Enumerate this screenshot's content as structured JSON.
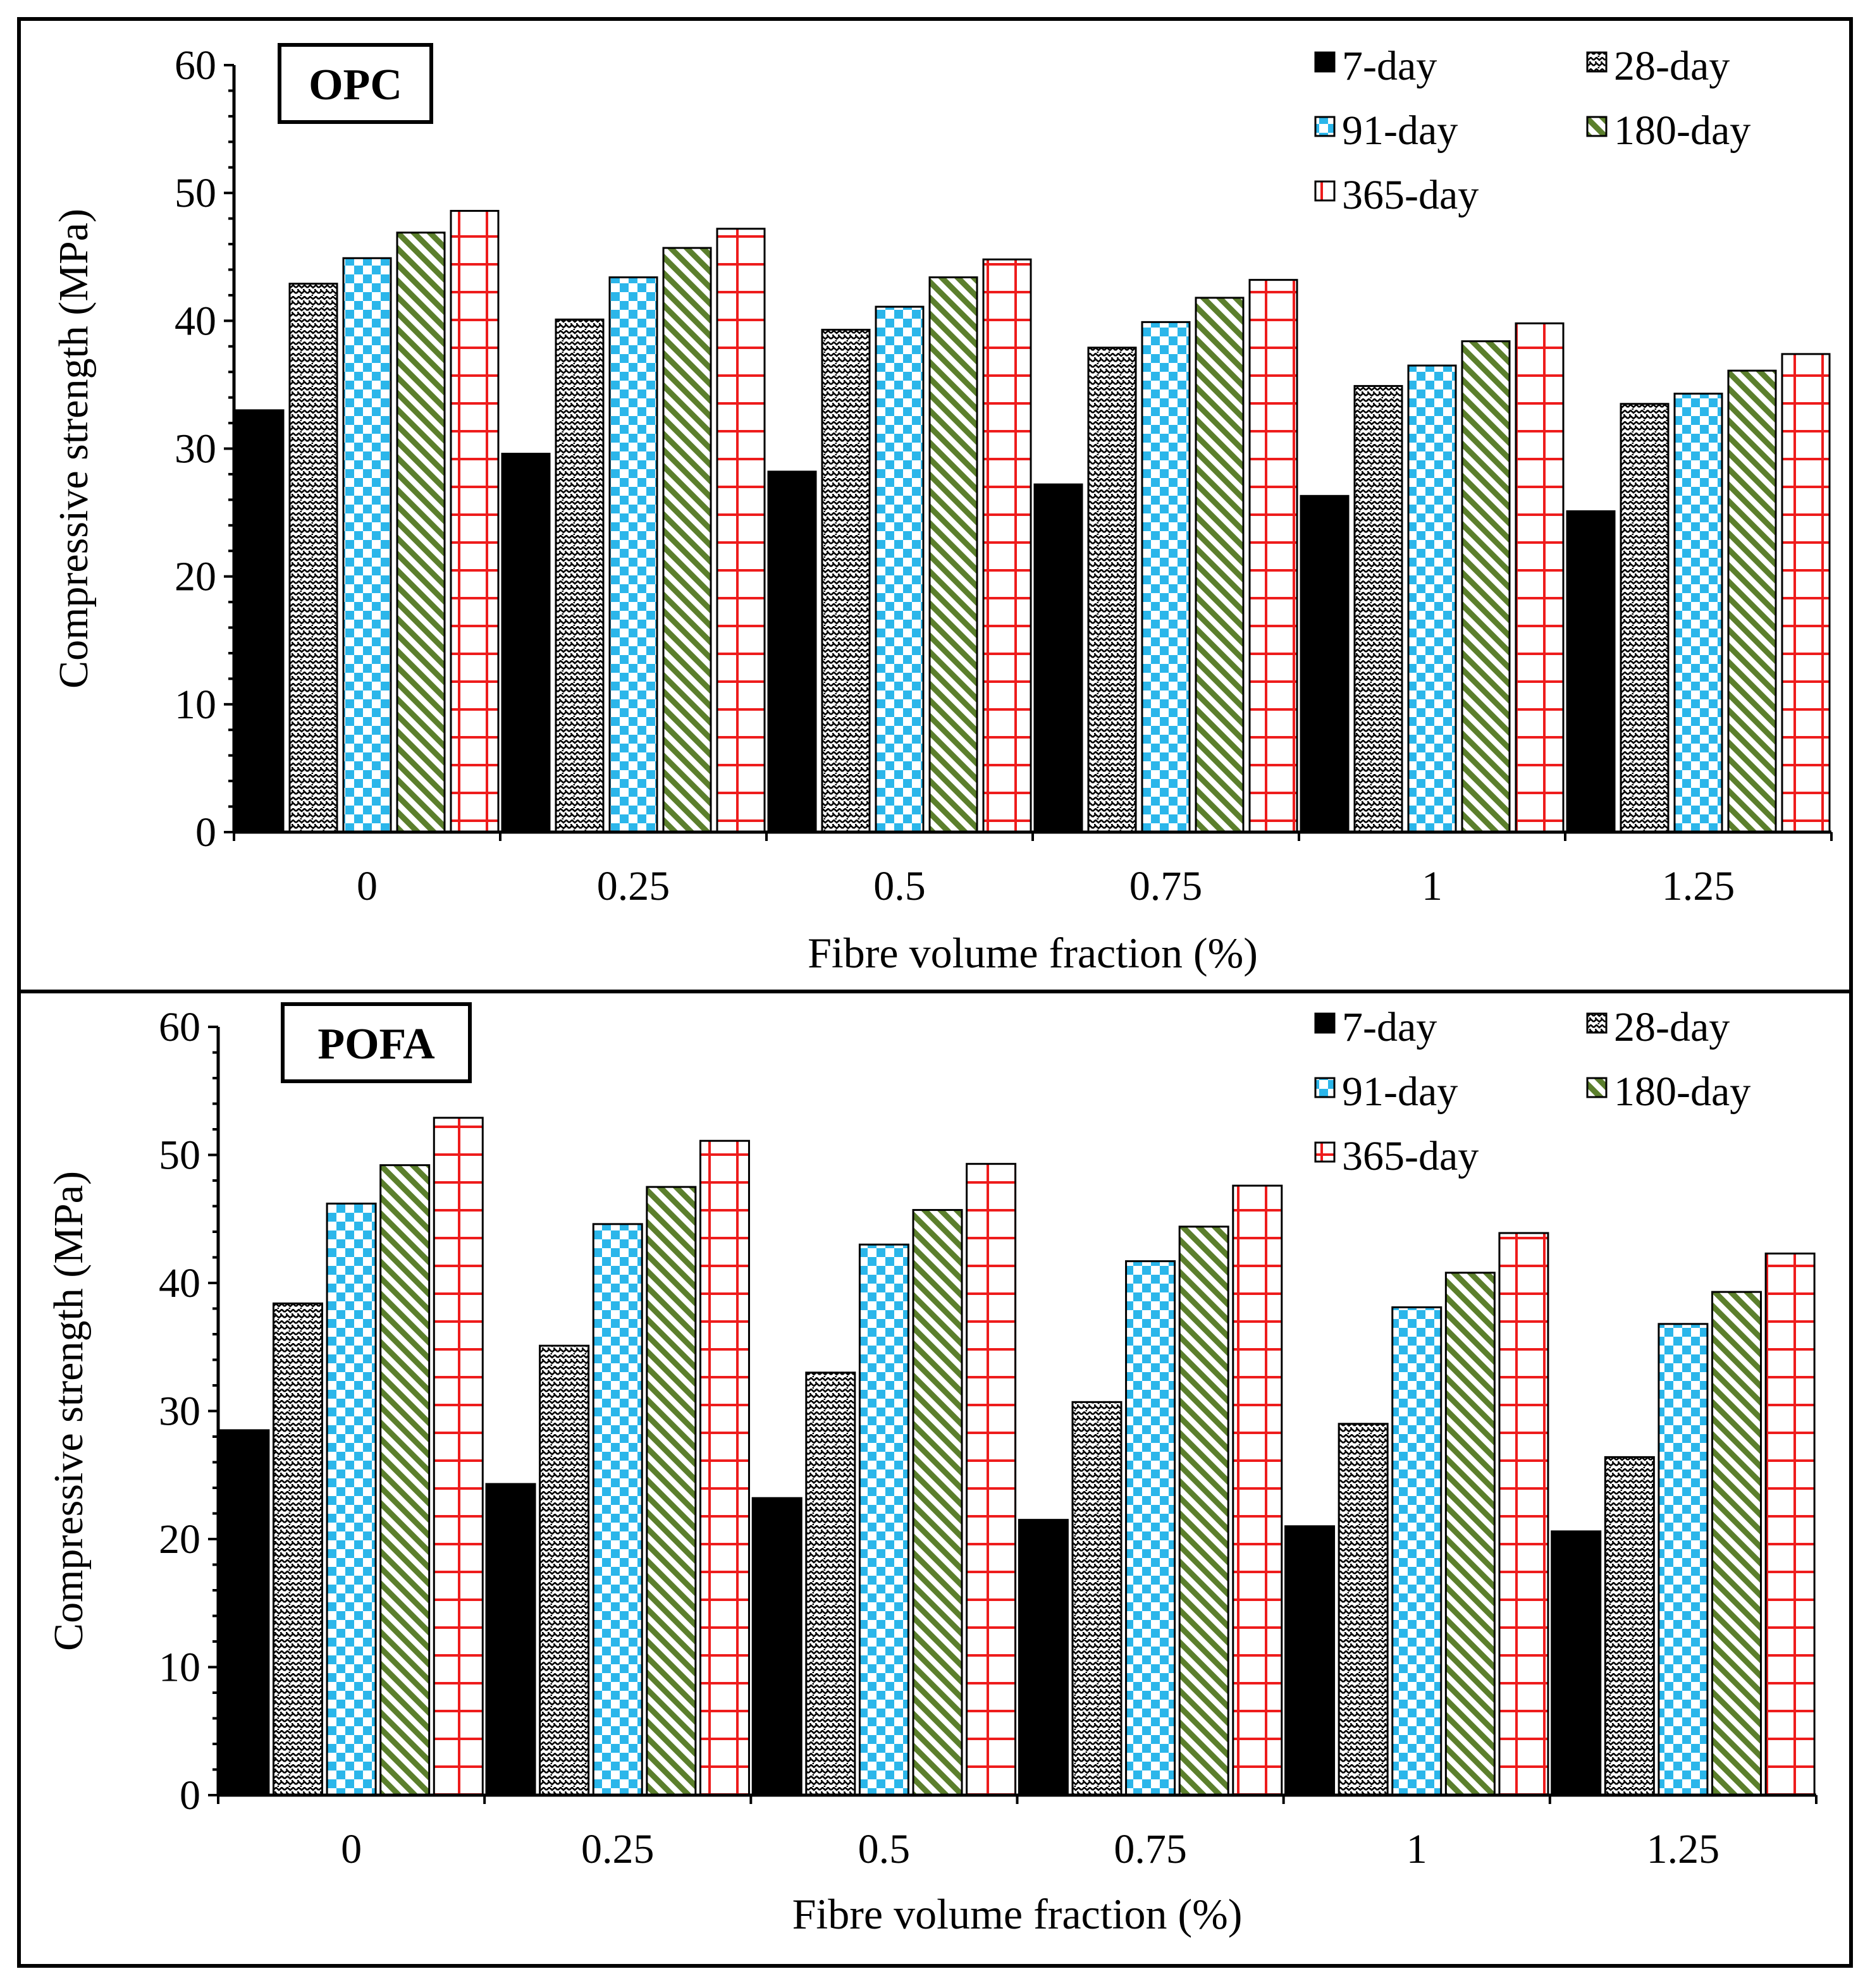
{
  "chart_data": [
    {
      "type": "bar",
      "title": "OPC",
      "xlabel": "Fibre volume fraction (%)",
      "ylabel": "Compressive strength (MPa)",
      "ylim": [
        0,
        60
      ],
      "yticks": [
        0,
        10,
        20,
        30,
        40,
        50,
        60
      ],
      "categories": [
        "0",
        "0.25",
        "0.5",
        "0.75",
        "1",
        "1.25"
      ],
      "legend_position": "top-right",
      "grid": false,
      "series": [
        {
          "name": "7-day",
          "pattern": "solid",
          "values": [
            33.0,
            29.6,
            28.2,
            27.2,
            26.3,
            25.1
          ]
        },
        {
          "name": "28-day",
          "pattern": "zigzag-dots",
          "values": [
            42.9,
            40.1,
            39.3,
            37.9,
            34.9,
            33.5
          ]
        },
        {
          "name": "91-day",
          "pattern": "checker-blue",
          "values": [
            44.9,
            43.4,
            41.1,
            39.9,
            36.5,
            34.3
          ]
        },
        {
          "name": "180-day",
          "pattern": "diag-green",
          "values": [
            46.9,
            45.7,
            43.4,
            41.8,
            38.4,
            36.1
          ]
        },
        {
          "name": "365-day",
          "pattern": "grid-red",
          "values": [
            48.6,
            47.2,
            44.8,
            43.2,
            39.8,
            37.4
          ]
        }
      ]
    },
    {
      "type": "bar",
      "title": "POFA",
      "xlabel": "Fibre volume fraction (%)",
      "ylabel": "Compressive strength (MPa)",
      "ylim": [
        0,
        60
      ],
      "yticks": [
        0,
        10,
        20,
        30,
        40,
        50,
        60
      ],
      "categories": [
        "0",
        "0.25",
        "0.5",
        "0.75",
        "1",
        "1.25"
      ],
      "legend_position": "top-right",
      "grid": false,
      "series": [
        {
          "name": "7-day",
          "pattern": "solid",
          "values": [
            28.5,
            24.3,
            23.2,
            21.5,
            21.0,
            20.6
          ]
        },
        {
          "name": "28-day",
          "pattern": "zigzag-dots",
          "values": [
            38.4,
            35.1,
            33.0,
            30.7,
            29.0,
            26.4
          ]
        },
        {
          "name": "91-day",
          "pattern": "checker-blue",
          "values": [
            46.2,
            44.6,
            43.0,
            41.7,
            38.1,
            36.8
          ]
        },
        {
          "name": "180-day",
          "pattern": "diag-green",
          "values": [
            49.2,
            47.5,
            45.7,
            44.4,
            40.8,
            39.3
          ]
        },
        {
          "name": "365-day",
          "pattern": "grid-red",
          "values": [
            52.9,
            51.1,
            49.3,
            47.6,
            43.9,
            42.3
          ]
        }
      ]
    }
  ]
}
